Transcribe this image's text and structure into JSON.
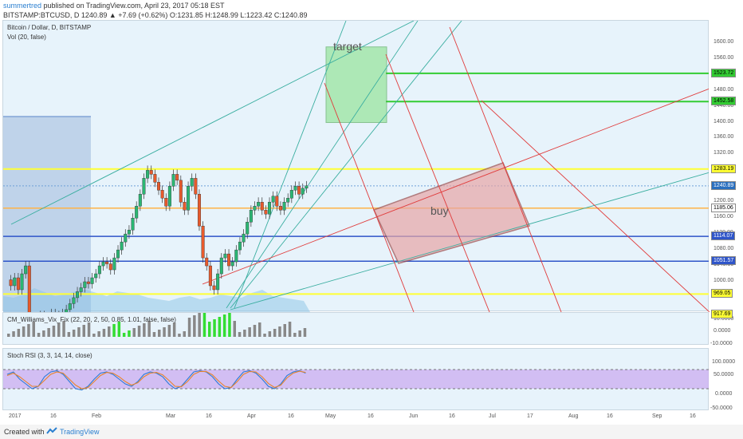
{
  "header": {
    "author": "summertred",
    "published": "published on TradingView.com, April 23, 2017 05:18 EST",
    "ohlc_line": "BITSTAMP:BTCUSD, D  1240.89  ▲ +7.69 (+0.62%)  O:1231.85  H:1248.99  L:1223.42  C:1240.89"
  },
  "main_pane": {
    "symbol_label": "Bitcoin / Dollar, D, BITSTAMP",
    "vol_label": "Vol (20, false)",
    "target_label": "target",
    "buy_label": "buy",
    "price_ticks": [
      "1600.00",
      "1560.00",
      "1520.00",
      "1480.00",
      "1440.00",
      "1400.00",
      "1360.00",
      "1320.00",
      "1280.00",
      "1240.00",
      "1200.00",
      "1160.00",
      "1120.00",
      "1080.00",
      "1040.00",
      "1000.00"
    ],
    "price_tags": [
      {
        "text": "1523.72",
        "bg": "#33cc33",
        "color": "#000"
      },
      {
        "text": "1452.58",
        "bg": "#33cc33",
        "color": "#000"
      },
      {
        "text": "1283.19",
        "bg": "#ffff33",
        "color": "#000"
      },
      {
        "text": "1240.89",
        "bg": "#2a6fbf",
        "color": "#fff"
      },
      {
        "text": "1185.06",
        "bg": "#ffffff",
        "color": "#000"
      },
      {
        "text": "1114.07",
        "bg": "#2f55c9",
        "color": "#fff"
      },
      {
        "text": "1051.57",
        "bg": "#2f55c9",
        "color": "#fff"
      },
      {
        "text": "969.05",
        "bg": "#ffff33",
        "color": "#000"
      },
      {
        "text": "917.69",
        "bg": "#ffff33",
        "color": "#000"
      }
    ]
  },
  "williams_pane": {
    "label": "CM_Williams_Vix_Fix (22, 20, 2, 50, 0.85, 1.01, false, false)",
    "ticks": [
      "10.0000",
      "0.0000",
      "-10.0000"
    ]
  },
  "stoch_pane": {
    "label": "Stoch RSI (3, 3, 14, 14, close)",
    "ticks": [
      "100.0000",
      "50.0000",
      "0.0000",
      "-50.0000"
    ]
  },
  "time_axis": [
    "2017",
    "16",
    "Feb",
    "Mar",
    "16",
    "Apr",
    "16",
    "May",
    "16",
    "Jun",
    "16",
    "Jul",
    "17",
    "Aug",
    "16",
    "Sep",
    "16"
  ],
  "footer": {
    "created_with": "Created with",
    "brand": "TradingView"
  },
  "colors": {
    "green": "#33cc33",
    "yellow": "#ffff33",
    "blue": "#2f55c9",
    "orange": "#ffb347",
    "red": "#e03b3b",
    "teal": "#3aaea0"
  },
  "chart_data": {
    "type": "candlestick",
    "title": "Bitcoin / Dollar, D, BITSTAMP",
    "horizontal_levels": [
      1523.72,
      1452.58,
      1283.19,
      1240.89,
      1185.06,
      1114.07,
      1051.57,
      969.05,
      917.69
    ],
    "last_price": 1240.89,
    "ohlc_last": {
      "open": 1231.85,
      "high": 1248.99,
      "low": 1223.42,
      "close": 1240.89,
      "change": 7.69,
      "change_pct": 0.62
    },
    "target_zone": {
      "label": "target",
      "price_range": [
        1400,
        1590
      ]
    },
    "buy_zone": {
      "label": "buy"
    },
    "close_series": [
      1005,
      990,
      1010,
      980,
      1020,
      1040,
      905,
      880,
      895,
      915,
      900,
      910,
      920,
      915,
      905,
      920,
      930,
      945,
      960,
      975,
      985,
      1000,
      995,
      1010,
      1020,
      1040,
      1050,
      1045,
      1030,
      1060,
      1080,
      1100,
      1120,
      1130,
      1160,
      1190,
      1220,
      1260,
      1280,
      1270,
      1250,
      1230,
      1210,
      1190,
      1240,
      1270,
      1255,
      1200,
      1180,
      1240,
      1260,
      1220,
      1140,
      1060,
      1040,
      990,
      980,
      1020,
      1060,
      1070,
      1040,
      1050,
      1080,
      1100,
      1120,
      1150,
      1180,
      1190,
      1200,
      1180,
      1170,
      1200,
      1215,
      1190,
      1180,
      1200,
      1210,
      1230,
      1240,
      1220,
      1235,
      1241
    ],
    "stoch_k": [
      80,
      90,
      60,
      40,
      20,
      30,
      70,
      90,
      95,
      80,
      50,
      20,
      15,
      30,
      60,
      85,
      90,
      80,
      60,
      40,
      30,
      50,
      80,
      90,
      85,
      70,
      40,
      20,
      30,
      60,
      90,
      95,
      90,
      70,
      40,
      20,
      25,
      60,
      90,
      95,
      85,
      60,
      30,
      20,
      40,
      75,
      90,
      95,
      85
    ],
    "stoch_d": [
      75,
      85,
      70,
      50,
      30,
      30,
      55,
      80,
      90,
      85,
      60,
      35,
      20,
      25,
      50,
      75,
      88,
      85,
      70,
      50,
      35,
      45,
      70,
      85,
      88,
      78,
      55,
      30,
      28,
      50,
      80,
      92,
      92,
      78,
      52,
      30,
      25,
      50,
      80,
      92,
      90,
      70,
      42,
      25,
      35,
      65,
      85,
      93,
      88
    ]
  }
}
